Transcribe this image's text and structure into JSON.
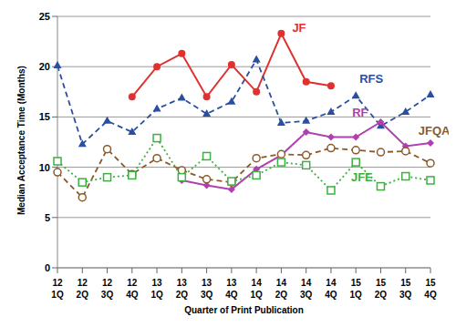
{
  "chart_data": {
    "type": "line",
    "x_label": "Quarter of Print Publication",
    "y_label": "Median Acceptance Time (Months)",
    "categories": [
      "12 1Q",
      "12 2Q",
      "12 3Q",
      "12 4Q",
      "13 1Q",
      "13 2Q",
      "13 3Q",
      "13 4Q",
      "14 1Q",
      "14 2Q",
      "14 3Q",
      "14 4Q",
      "15 1Q",
      "15 2Q",
      "15 3Q",
      "15 4Q"
    ],
    "ylim": [
      0,
      25
    ],
    "yticks": [
      0,
      5,
      10,
      15,
      20,
      25
    ],
    "grid": true,
    "series": [
      {
        "name": "JF",
        "color": "#e03030",
        "marker": "circle",
        "line_style": "solid",
        "values": [
          null,
          null,
          null,
          17,
          20,
          21.3,
          17,
          20.2,
          17.5,
          23.3,
          18.5,
          18.1,
          null,
          null,
          null,
          null
        ]
      },
      {
        "name": "RFS",
        "color": "#2a4fa0",
        "marker": "triangle",
        "line_style": "dashed",
        "values": [
          20.1,
          12.3,
          14.6,
          13.5,
          15.8,
          16.9,
          15.3,
          16.5,
          20.7,
          14.4,
          14.6,
          15.5,
          17.1,
          14.1,
          15.5,
          17.2
        ]
      },
      {
        "name": "RF",
        "color": "#b040b0",
        "marker": "diamond",
        "line_style": "solid",
        "values": [
          null,
          null,
          null,
          null,
          null,
          8.7,
          8.2,
          7.8,
          9.8,
          11.2,
          13.5,
          13,
          13,
          14.5,
          12.1,
          12.4
        ]
      },
      {
        "name": "JFQA",
        "color": "#8b5a2b",
        "marker": "open_circle",
        "line_style": "dashed",
        "values": [
          9.5,
          7,
          11.8,
          9.3,
          10.9,
          9.7,
          8.8,
          8.5,
          10.9,
          11.3,
          11.2,
          11.9,
          11.7,
          11.5,
          11.6,
          10.4
        ]
      },
      {
        "name": "JFE",
        "color": "#3cb043",
        "marker": "open_square",
        "line_style": "dotted",
        "values": [
          10.6,
          8.5,
          9,
          9.2,
          12.9,
          9,
          11.1,
          8.6,
          9.2,
          10.5,
          10.2,
          7.7,
          10.5,
          8.1,
          9.1,
          8.7
        ]
      }
    ]
  }
}
